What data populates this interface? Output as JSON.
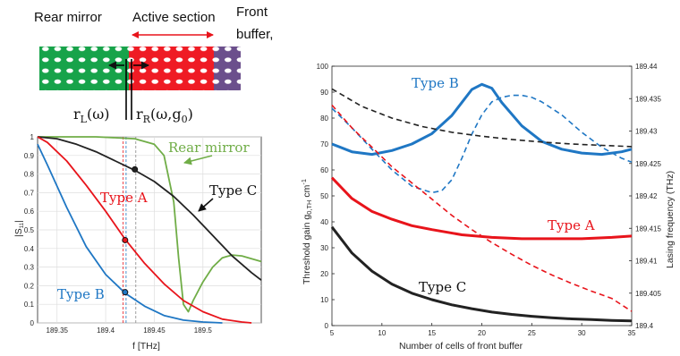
{
  "header": {
    "rear_mirror": "Rear mirror",
    "active_section": "Active section",
    "front_buffer_1": "Front",
    "front_buffer_2": "buffer,",
    "r_left": "r",
    "r_left_sub": "L",
    "r_left_arg": "(ω)",
    "r_right": "r",
    "r_right_sub": "R",
    "r_right_arg": "(ω,g",
    "r_right_arg_sub": "0",
    "r_right_arg_end": ")"
  },
  "colors": {
    "type_a": "#e8141b",
    "type_b": "#1f77c4",
    "type_c": "#222222",
    "rear_mirror": "#70ad47",
    "section_green": "#17a34a",
    "section_red": "#ef1b24",
    "section_purple": "#6b4f8c"
  },
  "chart_data": [
    {
      "type": "line",
      "xlabel": "f [THz]",
      "ylabel": "|S",
      "ylabel_sub": "11",
      "ylabel_end": "|",
      "xlim": [
        189.33,
        189.56
      ],
      "ylim": [
        0,
        1
      ],
      "x_ticks": [
        "189.35",
        "189.4",
        "189.45",
        "189.5"
      ],
      "y_ticks": [
        "0",
        "0.1",
        "0.2",
        "0.3",
        "0.4",
        "0.5",
        "0.6",
        "0.7",
        "0.8",
        "0.9",
        "1"
      ],
      "grid": true,
      "annotations": [
        "Rear mirror",
        "Type A",
        "Type C",
        "Type B"
      ],
      "series": [
        {
          "name": "Rear mirror",
          "color": "#70ad47",
          "x": [
            189.33,
            189.36,
            189.39,
            189.41,
            189.43,
            189.45,
            189.46,
            189.47,
            189.475,
            189.48,
            189.485,
            189.49,
            189.5,
            189.51,
            189.52,
            189.53,
            189.54,
            189.55,
            189.56
          ],
          "y": [
            1,
            1,
            1,
            0.995,
            0.99,
            0.96,
            0.9,
            0.65,
            0.35,
            0.1,
            0.06,
            0.12,
            0.22,
            0.3,
            0.35,
            0.365,
            0.36,
            0.345,
            0.33
          ]
        },
        {
          "name": "Type C",
          "color": "#222222",
          "x": [
            189.33,
            189.35,
            189.37,
            189.39,
            189.41,
            189.43,
            189.45,
            189.47,
            189.49,
            189.51,
            189.53,
            189.55,
            189.56
          ],
          "y": [
            1,
            0.99,
            0.96,
            0.92,
            0.87,
            0.82,
            0.76,
            0.68,
            0.58,
            0.47,
            0.36,
            0.27,
            0.23
          ]
        },
        {
          "name": "Type A",
          "color": "#e8141b",
          "x": [
            189.33,
            189.34,
            189.36,
            189.38,
            189.4,
            189.42,
            189.44,
            189.46,
            189.48,
            189.5,
            189.52,
            189.54,
            189.55
          ],
          "y": [
            1,
            0.97,
            0.87,
            0.74,
            0.6,
            0.45,
            0.32,
            0.21,
            0.12,
            0.06,
            0.02,
            0.005,
            0
          ]
        },
        {
          "name": "Type B",
          "color": "#1f77c4",
          "x": [
            189.33,
            189.34,
            189.36,
            189.38,
            189.4,
            189.42,
            189.44,
            189.46,
            189.48,
            189.5,
            189.52
          ],
          "y": [
            0.96,
            0.85,
            0.62,
            0.41,
            0.26,
            0.16,
            0.09,
            0.04,
            0.015,
            0.005,
            0
          ]
        }
      ],
      "markers": [
        {
          "series": "Type C",
          "x": 189.43,
          "y": 0.825
        },
        {
          "series": "Type A",
          "x": 189.42,
          "y": 0.445
        },
        {
          "series": "Type B",
          "x": 189.42,
          "y": 0.165
        }
      ],
      "vlines": [
        {
          "x": 189.418,
          "color": "#e8141b"
        },
        {
          "x": 189.421,
          "color": "#1f77c4"
        },
        {
          "x": 189.431,
          "color": "#888888"
        }
      ]
    },
    {
      "type": "line",
      "xlabel": "Number of cells of front buffer",
      "ylabel": "Threshold gain g",
      "ylabel_sub": "0,TH",
      "ylabel_end": " cm",
      "ylabel_sup": "-1",
      "y2label": "Lasing frequency  (THz)",
      "xlim": [
        5,
        35
      ],
      "ylim": [
        0,
        100
      ],
      "y2lim": [
        189.4,
        189.44
      ],
      "x_ticks": [
        "5",
        "10",
        "15",
        "20",
        "25",
        "30",
        "35"
      ],
      "y_ticks": [
        "0",
        "10",
        "20",
        "30",
        "40",
        "50",
        "60",
        "70",
        "80",
        "90",
        "100"
      ],
      "y2_ticks": [
        "189.4",
        "189.405",
        "189.41",
        "189.415",
        "189.42",
        "189.425",
        "189.43",
        "189.435",
        "189.44"
      ],
      "grid": false,
      "annotations": [
        "Type B",
        "Type A",
        "Type C"
      ],
      "series": [
        {
          "name": "Type B",
          "style": "solid",
          "axis": "left",
          "color": "#1f77c4",
          "x": [
            5,
            7,
            9,
            11,
            13,
            15,
            17,
            18,
            19,
            20,
            21,
            22,
            24,
            26,
            28,
            30,
            32,
            34,
            35
          ],
          "y": [
            70,
            67,
            66,
            67.5,
            70,
            74,
            81,
            86,
            91,
            93,
            91.5,
            86,
            77,
            71,
            68,
            66.5,
            66,
            67,
            68
          ]
        },
        {
          "name": "Type B",
          "style": "dashed",
          "axis": "right",
          "color": "#1f77c4",
          "x": [
            5,
            7,
            9,
            11,
            13,
            15,
            16,
            17,
            18,
            19,
            20,
            21,
            22,
            23,
            24,
            25,
            26,
            28,
            30,
            32,
            34,
            35
          ],
          "y": [
            189.4335,
            189.4305,
            189.4272,
            189.424,
            189.4215,
            189.4205,
            189.4208,
            189.4225,
            189.4258,
            189.4295,
            189.4325,
            189.4345,
            189.4352,
            189.4355,
            189.4355,
            189.4352,
            189.4345,
            189.4325,
            189.4298,
            189.4275,
            189.4258,
            189.4252
          ]
        },
        {
          "name": "Type C",
          "style": "dashed",
          "axis": "right",
          "color": "#222222",
          "x": [
            5,
            8,
            11,
            14,
            17,
            20,
            23,
            26,
            29,
            32,
            35
          ],
          "y": [
            189.4365,
            189.4338,
            189.432,
            189.4307,
            189.4298,
            189.4292,
            189.4287,
            189.4283,
            189.428,
            189.4278,
            189.4276
          ]
        },
        {
          "name": "Type A",
          "style": "dashed",
          "axis": "right",
          "color": "#e8141b",
          "x": [
            5,
            7,
            9,
            11,
            13,
            15,
            17,
            19,
            21,
            23,
            25,
            27,
            29,
            31,
            33,
            35
          ],
          "y": [
            189.434,
            189.4305,
            189.4275,
            189.4245,
            189.422,
            189.4195,
            189.417,
            189.4148,
            189.4128,
            189.411,
            189.4093,
            189.4078,
            189.4065,
            189.4053,
            189.4042,
            189.4022
          ]
        },
        {
          "name": "Type A",
          "style": "solid",
          "axis": "left",
          "color": "#e8141b",
          "x": [
            5,
            7,
            9,
            11,
            13,
            15,
            18,
            21,
            24,
            27,
            30,
            33,
            35
          ],
          "y": [
            57,
            49,
            44,
            41,
            38.5,
            37,
            35,
            34,
            33.5,
            33.5,
            33.5,
            34,
            34.5
          ]
        },
        {
          "name": "Type C",
          "style": "solid",
          "axis": "left",
          "color": "#222222",
          "x": [
            5,
            7,
            9,
            11,
            13,
            15,
            17,
            19,
            21,
            23,
            25,
            27,
            29,
            31,
            33,
            35
          ],
          "y": [
            38,
            28,
            21,
            16,
            12.5,
            10,
            8,
            6.5,
            5.2,
            4.3,
            3.6,
            3,
            2.6,
            2.3,
            2,
            1.8
          ]
        }
      ]
    }
  ],
  "labels": {
    "left_rear_mirror": "Rear mirror",
    "left_type_a": "Type A",
    "left_type_c": "Type C",
    "left_type_b": "Type B",
    "right_type_b": "Type B",
    "right_type_a": "Type A",
    "right_type_c": "Type C"
  }
}
